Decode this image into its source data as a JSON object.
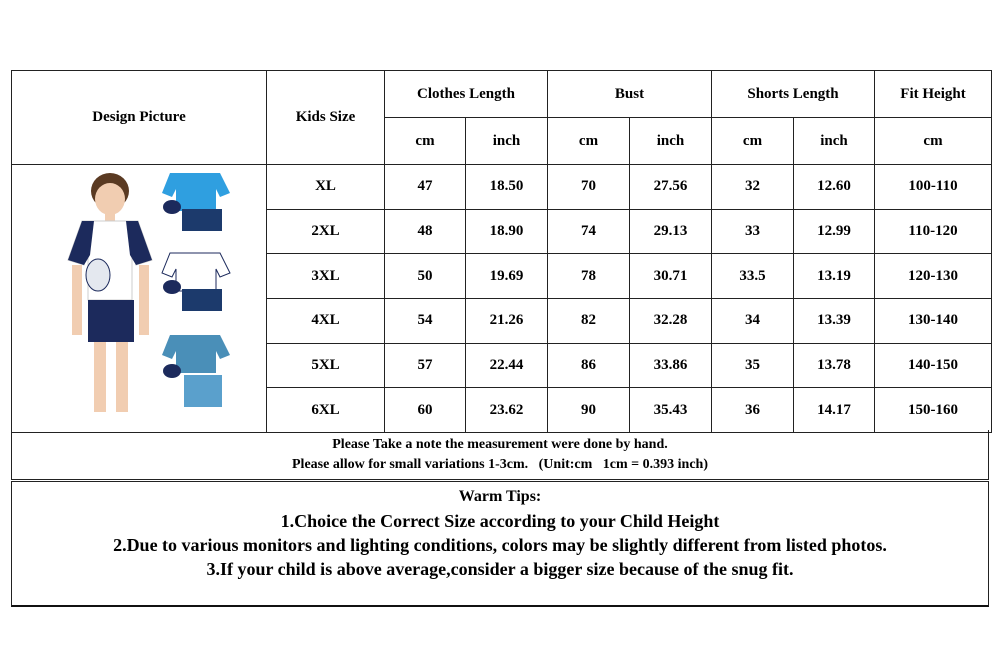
{
  "header": {
    "design_picture": "Design Picture",
    "kids_size": "Kids Size",
    "groups": [
      "Clothes Length",
      "Bust",
      "Shorts Length",
      "Fit Height"
    ],
    "units": [
      "cm",
      "inch",
      "cm",
      "inch",
      "cm",
      "inch",
      "cm"
    ]
  },
  "rows": [
    [
      "XL",
      "47",
      "18.50",
      "70",
      "27.56",
      "32",
      "12.60",
      "100-110"
    ],
    [
      "2XL",
      "48",
      "18.90",
      "74",
      "29.13",
      "33",
      "12.99",
      "110-120"
    ],
    [
      "3XL",
      "50",
      "19.69",
      "78",
      "30.71",
      "33.5",
      "13.19",
      "120-130"
    ],
    [
      "4XL",
      "54",
      "21.26",
      "82",
      "32.28",
      "34",
      "13.39",
      "130-140"
    ],
    [
      "5XL",
      "57",
      "22.44",
      "86",
      "33.86",
      "35",
      "13.78",
      "140-150"
    ],
    [
      "6XL",
      "60",
      "23.62",
      "90",
      "35.43",
      "36",
      "14.17",
      "150-160"
    ]
  ],
  "notes": [
    "Please Take a note the measurement were done by hand.",
    "Please allow for small variations 1-3cm.   (Unit:cm   1cm = 0.393 inch)"
  ],
  "tips": {
    "title": "Warm Tips:",
    "lines": [
      "1.Choice the Correct Size according to your Child Height",
      "2.Due to various monitors and lighting conditions, colors may be slightly different from listed photos.",
      "3.If your child is above average,consider a bigger size because of the snug fit."
    ]
  },
  "colors": {
    "navy": "#1c2a5c",
    "sky": "#2f9fe0",
    "steel": "#4a8fb8"
  }
}
